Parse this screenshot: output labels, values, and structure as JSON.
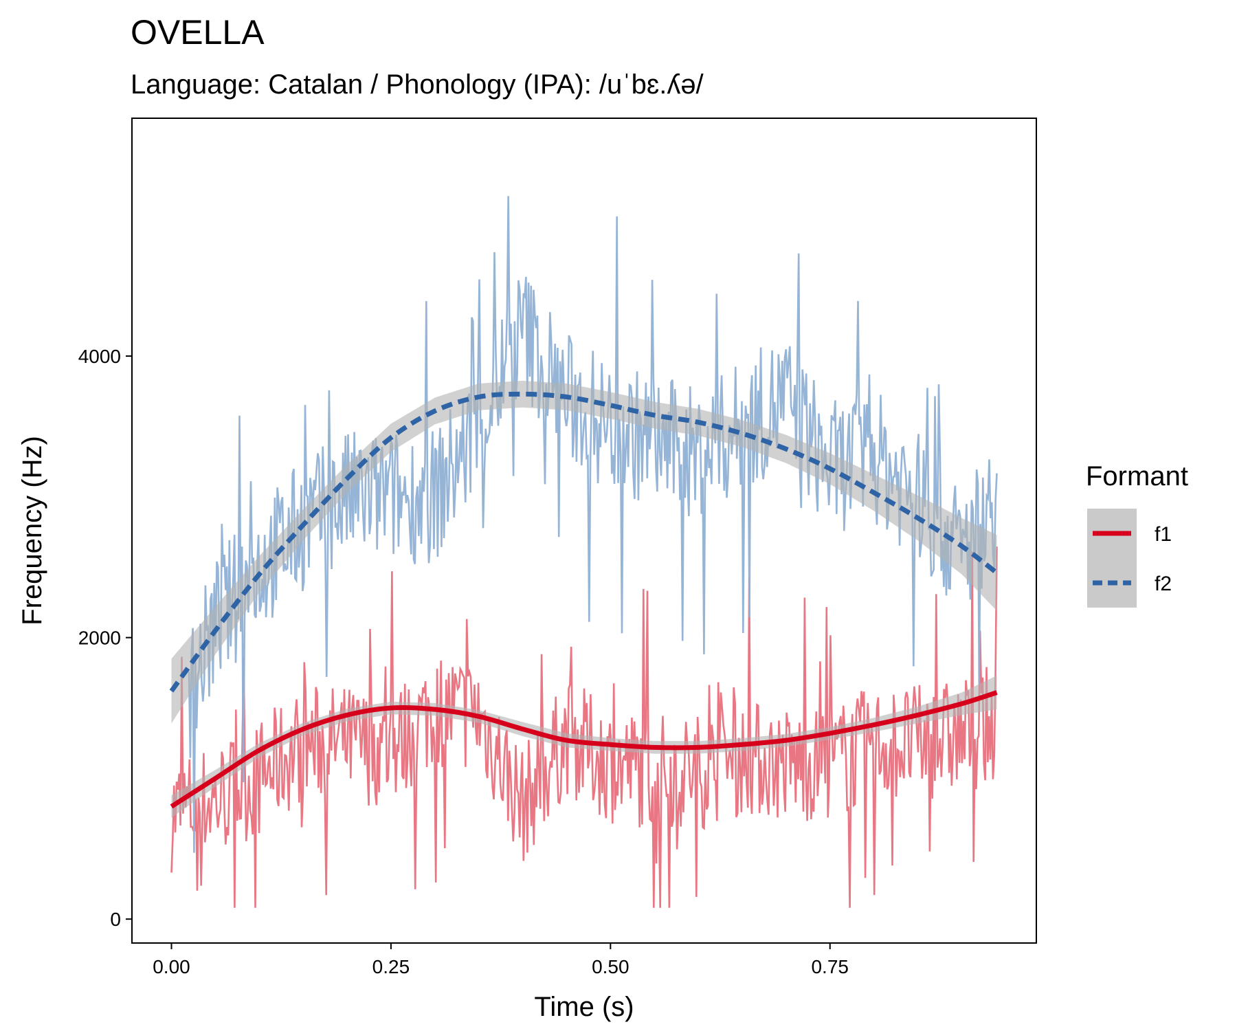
{
  "colors": {
    "f1_raw": "#e8707c",
    "f2_raw": "#8fb0d4",
    "f1_smooth": "#d7001c",
    "f2_smooth": "#2e63a6",
    "ribbon": "#b3b3b3"
  },
  "chart_data": {
    "type": "line",
    "title": "OVELLA",
    "subtitle": "Language: Catalan / Phonology (IPA): /uˈbɛ.ʎə/",
    "xlabel": "Time (s)",
    "ylabel": "Frequency (Hz)",
    "xlim": [
      -0.045,
      0.985
    ],
    "ylim": [
      -170,
      5690
    ],
    "x_ticks": [
      0,
      0.25,
      0.5,
      0.75
    ],
    "x_tick_labels": [
      "0.00",
      "0.25",
      "0.50",
      "0.75"
    ],
    "y_ticks": [
      0,
      2000,
      4000
    ],
    "y_tick_labels": [
      "0",
      "2000",
      "4000"
    ],
    "grid": false,
    "legend": {
      "title": "Formant",
      "placement": "right",
      "entries": [
        "f1",
        "f2"
      ]
    },
    "series": [
      {
        "name": "f1",
        "kind": "raw",
        "x_range": [
          0,
          0.94
        ],
        "keypoints": [
          [
            0,
            750
          ],
          [
            0.05,
            850
          ],
          [
            0.1,
            1000
          ],
          [
            0.15,
            1250
          ],
          [
            0.2,
            1250
          ],
          [
            0.25,
            1200
          ],
          [
            0.3,
            1500
          ],
          [
            0.35,
            1450
          ],
          [
            0.4,
            800
          ],
          [
            0.45,
            1300
          ],
          [
            0.5,
            1100
          ],
          [
            0.55,
            1050
          ],
          [
            0.6,
            1050
          ],
          [
            0.65,
            1150
          ],
          [
            0.7,
            1100
          ],
          [
            0.75,
            1100
          ],
          [
            0.8,
            1250
          ],
          [
            0.85,
            1250
          ],
          [
            0.9,
            1300
          ],
          [
            0.94,
            1400
          ]
        ]
      },
      {
        "name": "f2",
        "kind": "raw",
        "x_range": [
          0.02,
          0.94
        ],
        "keypoints": [
          [
            0.02,
            1600
          ],
          [
            0.05,
            2100
          ],
          [
            0.1,
            2500
          ],
          [
            0.15,
            2800
          ],
          [
            0.2,
            3000
          ],
          [
            0.25,
            3000
          ],
          [
            0.3,
            3000
          ],
          [
            0.35,
            3500
          ],
          [
            0.4,
            4200
          ],
          [
            0.45,
            3700
          ],
          [
            0.5,
            3500
          ],
          [
            0.55,
            3400
          ],
          [
            0.6,
            3300
          ],
          [
            0.65,
            3500
          ],
          [
            0.7,
            3700
          ],
          [
            0.75,
            3200
          ],
          [
            0.8,
            3300
          ],
          [
            0.85,
            3000
          ],
          [
            0.9,
            2600
          ],
          [
            0.94,
            3000
          ]
        ]
      },
      {
        "name": "f1",
        "kind": "smooth",
        "x": [
          0,
          0.05,
          0.1,
          0.15,
          0.2,
          0.25,
          0.3,
          0.35,
          0.4,
          0.45,
          0.5,
          0.55,
          0.6,
          0.65,
          0.7,
          0.75,
          0.8,
          0.85,
          0.9,
          0.94
        ],
        "y": [
          800,
          1000,
          1200,
          1350,
          1450,
          1500,
          1490,
          1440,
          1350,
          1270,
          1240,
          1220,
          1220,
          1240,
          1270,
          1320,
          1380,
          1450,
          1530,
          1610
        ],
        "se": [
          80,
          60,
          50,
          45,
          45,
          45,
          45,
          45,
          50,
          50,
          45,
          45,
          45,
          45,
          45,
          45,
          50,
          60,
          80,
          120
        ]
      },
      {
        "name": "f2",
        "kind": "smooth",
        "x": [
          0,
          0.05,
          0.1,
          0.15,
          0.2,
          0.25,
          0.3,
          0.35,
          0.4,
          0.45,
          0.5,
          0.55,
          0.6,
          0.65,
          0.7,
          0.75,
          0.8,
          0.85,
          0.9,
          0.94
        ],
        "y": [
          1620,
          2050,
          2450,
          2800,
          3130,
          3420,
          3610,
          3710,
          3730,
          3710,
          3650,
          3580,
          3530,
          3450,
          3340,
          3200,
          3030,
          2850,
          2650,
          2460
        ],
        "se": [
          230,
          170,
          130,
          110,
          100,
          100,
          95,
          95,
          95,
          95,
          95,
          95,
          95,
          95,
          100,
          110,
          130,
          160,
          200,
          270
        ]
      }
    ]
  }
}
